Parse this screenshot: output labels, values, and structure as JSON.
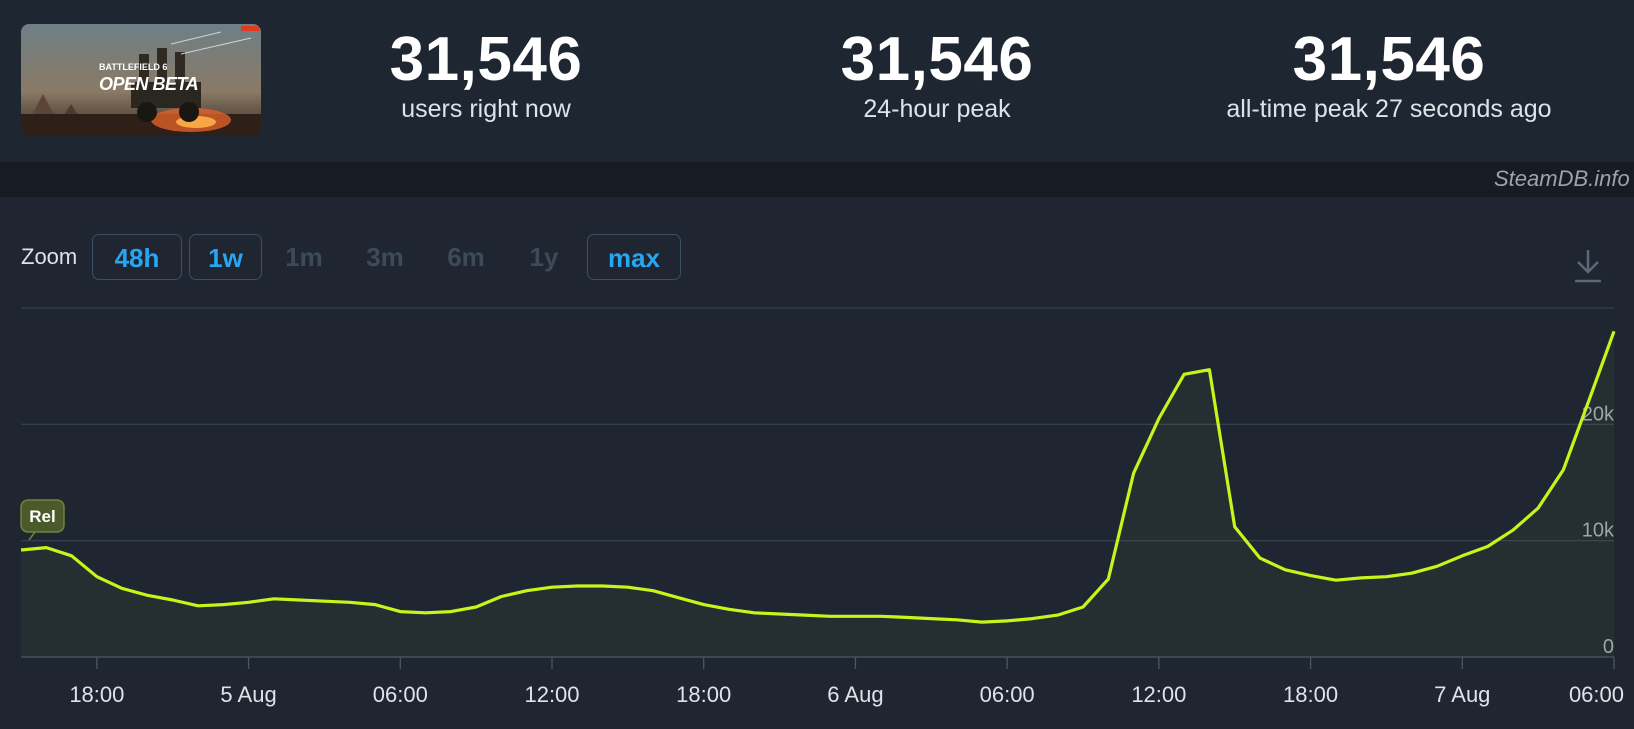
{
  "header": {
    "thumbnail_title_small": "BATTLEFIELD 6",
    "thumbnail_title_big": "OPEN BETA",
    "stats": [
      {
        "value": "31,546",
        "label": "users right now"
      },
      {
        "value": "31,546",
        "label": "24-hour peak"
      },
      {
        "value": "31,546",
        "label": "all-time peak 27 seconds ago"
      }
    ],
    "credit": "SteamDB.info"
  },
  "toolbar": {
    "zoom_label": "Zoom",
    "buttons": [
      {
        "label": "48h",
        "active": true
      },
      {
        "label": "1w",
        "active": true
      },
      {
        "label": "1m",
        "active": false
      },
      {
        "label": "3m",
        "active": false
      },
      {
        "label": "6m",
        "active": false
      },
      {
        "label": "1y",
        "active": false
      },
      {
        "label": "max",
        "active": true
      }
    ],
    "download_icon": "download-icon"
  },
  "chart_data": {
    "type": "line",
    "annotation": "Rel",
    "x_tick_labels": [
      "18:00",
      "5 Aug",
      "06:00",
      "12:00",
      "18:00",
      "6 Aug",
      "06:00",
      "12:00",
      "18:00",
      "7 Aug",
      "06:00"
    ],
    "y_tick_labels": [
      "0",
      "10k",
      "20k"
    ],
    "ylim": [
      0,
      30000
    ],
    "series_color": "#c6f51b",
    "series": [
      {
        "x": [
          "4 Aug 15:00",
          "4 Aug 16:00",
          "4 Aug 17:00",
          "4 Aug 18:00",
          "4 Aug 19:00",
          "4 Aug 20:00",
          "4 Aug 21:00",
          "4 Aug 22:00",
          "4 Aug 23:00",
          "5 Aug 00:00",
          "5 Aug 01:00",
          "5 Aug 02:00",
          "5 Aug 03:00",
          "5 Aug 04:00",
          "5 Aug 05:00",
          "5 Aug 06:00",
          "5 Aug 07:00",
          "5 Aug 08:00",
          "5 Aug 09:00",
          "5 Aug 10:00",
          "5 Aug 11:00",
          "5 Aug 12:00",
          "5 Aug 13:00",
          "5 Aug 14:00",
          "5 Aug 15:00",
          "5 Aug 16:00",
          "5 Aug 17:00",
          "5 Aug 18:00",
          "5 Aug 19:00",
          "5 Aug 20:00",
          "5 Aug 21:00",
          "5 Aug 22:00",
          "5 Aug 23:00",
          "6 Aug 00:00",
          "6 Aug 01:00",
          "6 Aug 02:00",
          "6 Aug 03:00",
          "6 Aug 04:00",
          "6 Aug 05:00",
          "6 Aug 06:00",
          "6 Aug 07:00",
          "6 Aug 08:00",
          "6 Aug 09:00",
          "6 Aug 10:00",
          "6 Aug 11:00",
          "6 Aug 12:00",
          "6 Aug 13:00",
          "6 Aug 14:00",
          "6 Aug 15:00",
          "6 Aug 16:00",
          "6 Aug 17:00",
          "6 Aug 18:00",
          "6 Aug 19:00",
          "6 Aug 20:00",
          "6 Aug 21:00",
          "6 Aug 22:00",
          "6 Aug 23:00",
          "7 Aug 00:00",
          "7 Aug 01:00",
          "7 Aug 02:00",
          "7 Aug 03:00",
          "7 Aug 04:00",
          "7 Aug 05:00",
          "7 Aug 06:00"
        ],
        "values": [
          9200,
          9400,
          8700,
          6900,
          5900,
          5300,
          4900,
          4400,
          4500,
          4700,
          5000,
          4900,
          4800,
          4700,
          4500,
          3900,
          3800,
          3900,
          4300,
          5200,
          5700,
          6000,
          6100,
          6100,
          6000,
          5700,
          5100,
          4500,
          4100,
          3800,
          3700,
          3600,
          3500,
          3500,
          3500,
          3400,
          3300,
          3200,
          3000,
          3100,
          3300,
          3600,
          4300,
          6700,
          15800,
          20500,
          24300,
          24700,
          11200,
          8500,
          7500,
          7000,
          6600,
          6800,
          6900,
          7200,
          7800,
          8700,
          9500,
          10900,
          12800,
          16100,
          22000,
          28000
        ]
      }
    ]
  }
}
